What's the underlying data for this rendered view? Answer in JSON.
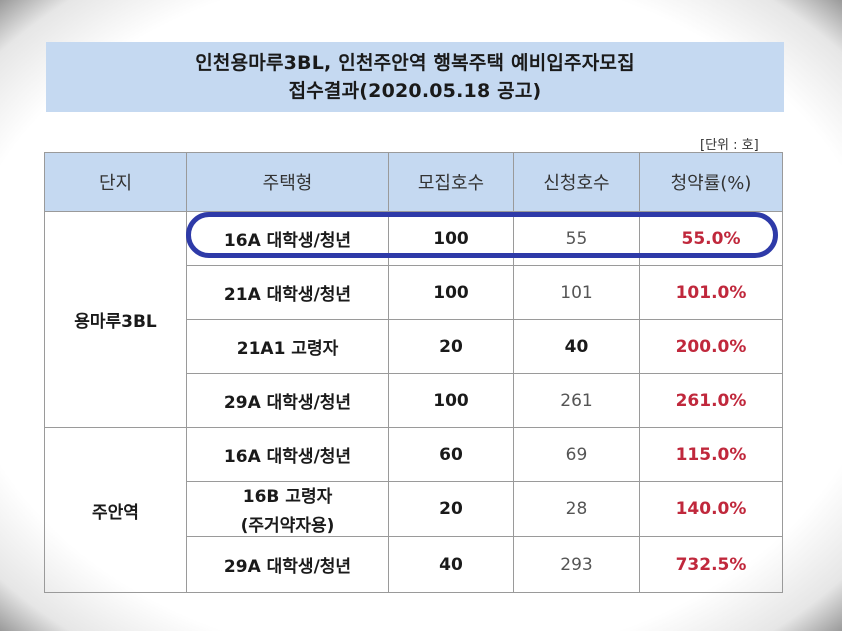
{
  "title": {
    "line1": "인천용마루3BL, 인천주안역 행복주택 예비입주자모집",
    "line2": "접수결과(2020.05.18 공고)"
  },
  "unit_note": "[단위 : 호]",
  "headers": [
    "단지",
    "주택형",
    "모집호수",
    "신청호수",
    "청약률(%)"
  ],
  "groups": [
    {
      "complex": "용마루3BL",
      "rows": [
        {
          "type": "16A 대학생/청년",
          "recruit": "100",
          "applied": "55",
          "rate": "55.0%"
        },
        {
          "type": "21A 대학생/청년",
          "recruit": "100",
          "applied": "101",
          "rate": "101.0%"
        },
        {
          "type": "21A1 고령자",
          "recruit": "20",
          "applied": "40",
          "rate": "200.0%"
        },
        {
          "type": "29A 대학생/청년",
          "recruit": "100",
          "applied": "261",
          "rate": "261.0%"
        }
      ]
    },
    {
      "complex": "주안역",
      "rows": [
        {
          "type": "16A 대학생/청년",
          "recruit": "60",
          "applied": "69",
          "rate": "115.0%"
        },
        {
          "type_line1": "16B 고령자",
          "type_line2": "(주거약자용)",
          "recruit": "20",
          "applied": "28",
          "rate": "140.0%"
        },
        {
          "type": "29A 대학생/청년",
          "recruit": "40",
          "applied": "293",
          "rate": "732.5%"
        }
      ]
    }
  ],
  "colors": {
    "header_bg": "#c5d9f1",
    "rate_text": "#c0283c",
    "highlight_ring": "#2e3aa8"
  }
}
